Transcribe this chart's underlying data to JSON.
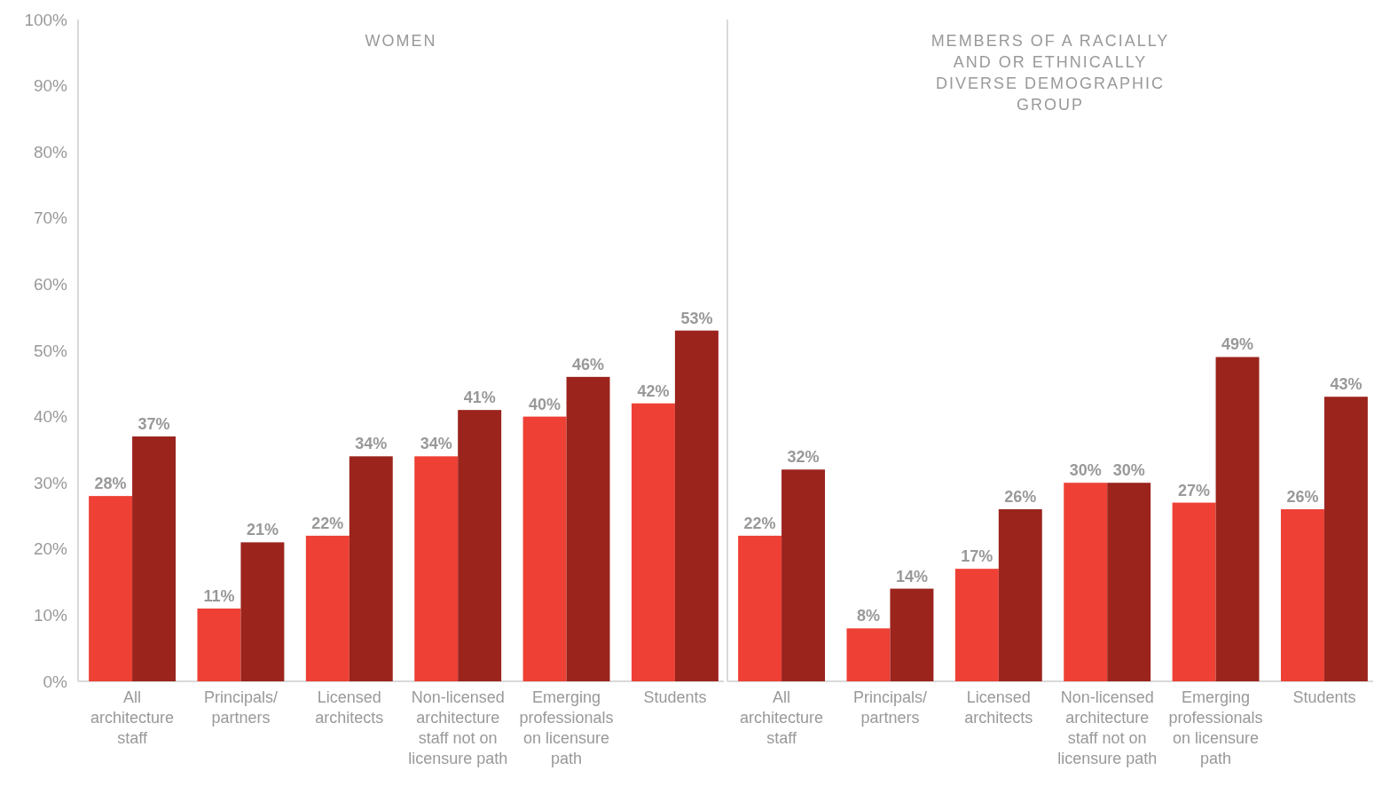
{
  "chart_data": [
    {
      "type": "bar",
      "title": "WOMEN",
      "categories": [
        "All architecture staff",
        "Principals/ partners",
        "Licensed architects",
        "Non-licensed architecture staff not on licensure path",
        "Emerging professionals on licensure path",
        "Students"
      ],
      "series": [
        {
          "color": "#ee4035",
          "values": [
            28,
            11,
            22,
            34,
            40,
            42
          ],
          "value_labels": [
            "28%",
            "11%",
            "22%",
            "34%",
            "40%",
            "42%"
          ]
        },
        {
          "color": "#9b241d",
          "values": [
            37,
            21,
            34,
            41,
            46,
            53
          ],
          "value_labels": [
            "37%",
            "21%",
            "34%",
            "41%",
            "46%",
            "53%"
          ]
        }
      ],
      "ylim": [
        0,
        100
      ],
      "yticks": [
        {
          "value": 0,
          "label": "0%"
        },
        {
          "value": 10,
          "label": "10%"
        },
        {
          "value": 20,
          "label": "20%"
        },
        {
          "value": 30,
          "label": "30%"
        },
        {
          "value": 40,
          "label": "40%"
        },
        {
          "value": 50,
          "label": "50%"
        },
        {
          "value": 60,
          "label": "60%"
        },
        {
          "value": 70,
          "label": "70%"
        },
        {
          "value": 80,
          "label": "80%"
        },
        {
          "value": 90,
          "label": "90%"
        },
        {
          "value": 100,
          "label": "100%"
        }
      ]
    },
    {
      "type": "bar",
      "title": "MEMBERS OF A RACIALLY AND OR ETHNICALLY DIVERSE DEMOGRAPHIC GROUP",
      "categories": [
        "All architecture staff",
        "Principals/ partners",
        "Licensed architects",
        "Non-licensed architecture staff not on licensure path",
        "Emerging professionals on licensure path",
        "Students"
      ],
      "series": [
        {
          "color": "#ee4035",
          "values": [
            22,
            8,
            17,
            30,
            27,
            26
          ],
          "value_labels": [
            "22%",
            "8%",
            "17%",
            "30%",
            "27%",
            "26%"
          ]
        },
        {
          "color": "#9b241d",
          "values": [
            32,
            14,
            26,
            30,
            49,
            43
          ],
          "value_labels": [
            "32%",
            "14%",
            "26%",
            "30%",
            "49%",
            "43%"
          ]
        }
      ],
      "ylim": [
        0,
        100
      ],
      "tick_labels": "x"
    }
  ]
}
